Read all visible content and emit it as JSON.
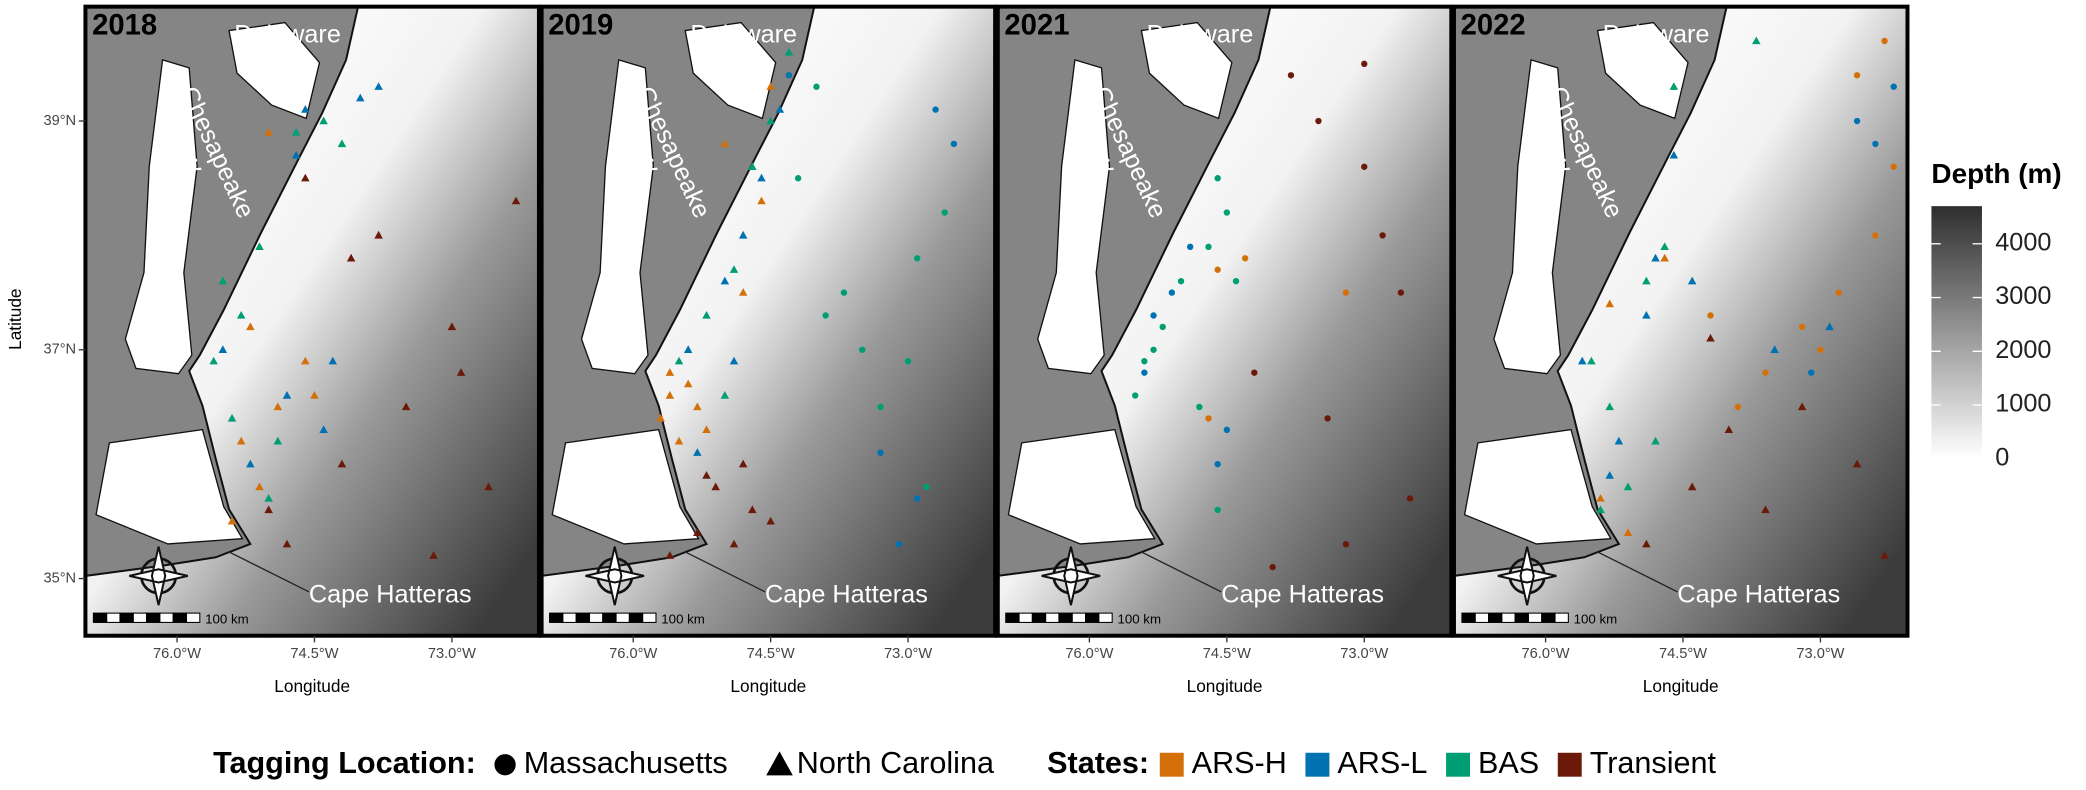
{
  "chart_data": [
    {
      "type": "scatter",
      "title": "2018",
      "x_label": "Longitude",
      "y_label": "Latitude",
      "xlim": [
        -77,
        -72.05
      ],
      "ylim": [
        34.5,
        40
      ],
      "xticks": [
        {
          "value": -76,
          "label": "76.0°W"
        },
        {
          "value": -74.5,
          "label": "74.5°W"
        },
        {
          "value": -73,
          "label": "73.0°W"
        }
      ],
      "yticks": [
        {
          "value": 35,
          "label": "35°N"
        },
        {
          "value": 37,
          "label": "37°N"
        },
        {
          "value": 39,
          "label": "39°N"
        }
      ],
      "series": [
        {
          "name": "ARS-H",
          "tagging": "North Carolina",
          "x": [
            -75.3,
            -75.1,
            -74.9,
            -75.4,
            -75.2,
            -74.6,
            -74.5,
            -75.0
          ],
          "y": [
            36.2,
            35.8,
            36.5,
            35.5,
            37.2,
            36.9,
            36.6,
            38.9
          ]
        },
        {
          "name": "ARS-L",
          "tagging": "North Carolina",
          "x": [
            -75.2,
            -74.8,
            -74.4,
            -74.3,
            -75.5,
            -74.7,
            -74.0,
            -73.8,
            -74.6
          ],
          "y": [
            36.0,
            36.6,
            36.3,
            36.9,
            37.0,
            38.7,
            39.2,
            39.3,
            39.1
          ]
        },
        {
          "name": "BAS",
          "tagging": "North Carolina",
          "x": [
            -75.6,
            -75.3,
            -75.4,
            -75.0,
            -74.9,
            -75.5,
            -74.7,
            -74.4,
            -74.2,
            -75.1
          ],
          "y": [
            36.9,
            37.3,
            36.4,
            35.7,
            36.2,
            37.6,
            38.9,
            39.0,
            38.8,
            37.9
          ]
        },
        {
          "name": "Transient",
          "tagging": "North Carolina",
          "x": [
            -74.2,
            -73.5,
            -73.0,
            -72.6,
            -74.6,
            -73.8,
            -72.9,
            -73.2,
            -74.8,
            -75.0,
            -74.1,
            -72.3
          ],
          "y": [
            36.0,
            36.5,
            37.2,
            35.8,
            38.5,
            38.0,
            36.8,
            35.2,
            35.3,
            35.6,
            37.8,
            38.3
          ]
        }
      ]
    },
    {
      "type": "scatter",
      "title": "2019",
      "x_label": "Longitude",
      "xlim": [
        -77,
        -72.05
      ],
      "ylim": [
        34.5,
        40
      ],
      "xticks": [
        {
          "value": -76,
          "label": "76.0°W"
        },
        {
          "value": -74.5,
          "label": "74.5°W"
        },
        {
          "value": -73,
          "label": "73.0°W"
        }
      ],
      "series": [
        {
          "name": "BAS",
          "tagging": "Massachusetts",
          "x": [
            -73.9,
            -73.5,
            -73.0,
            -72.6,
            -74.2,
            -73.3,
            -72.8,
            -73.7,
            -72.9,
            -74.0
          ],
          "y": [
            37.3,
            37.0,
            36.9,
            38.2,
            38.5,
            36.5,
            35.8,
            37.5,
            37.8,
            39.3
          ]
        },
        {
          "name": "ARS-L",
          "tagging": "Massachusetts",
          "x": [
            -72.7,
            -72.5,
            -73.1,
            -72.9,
            -73.3,
            -74.3
          ],
          "y": [
            39.1,
            38.8,
            35.3,
            35.7,
            36.1,
            39.4
          ]
        },
        {
          "name": "ARS-H",
          "tagging": "North Carolina",
          "x": [
            -75.7,
            -75.6,
            -75.5,
            -75.4,
            -75.3,
            -75.2,
            -75.6,
            -74.8,
            -74.6,
            -75.0,
            -74.5
          ],
          "y": [
            36.4,
            36.6,
            36.2,
            36.7,
            36.5,
            36.3,
            36.8,
            37.5,
            38.3,
            38.8,
            39.3
          ]
        },
        {
          "name": "ARS-L",
          "tagging": "North Carolina",
          "x": [
            -75.4,
            -75.0,
            -74.8,
            -74.6,
            -75.3,
            -74.9,
            -74.4
          ],
          "y": [
            37.0,
            37.6,
            38.0,
            38.5,
            36.1,
            36.9,
            39.1
          ]
        },
        {
          "name": "BAS",
          "tagging": "North Carolina",
          "x": [
            -75.5,
            -75.2,
            -74.9,
            -75.0,
            -74.7,
            -74.5,
            -74.3
          ],
          "y": [
            36.9,
            37.3,
            37.7,
            36.6,
            38.6,
            39.0,
            39.6
          ]
        },
        {
          "name": "Transient",
          "tagging": "North Carolina",
          "x": [
            -75.1,
            -74.7,
            -74.5,
            -74.8,
            -75.3,
            -74.9,
            -75.6,
            -75.2
          ],
          "y": [
            35.8,
            35.6,
            35.5,
            36.0,
            35.4,
            35.3,
            35.2,
            35.9
          ]
        }
      ]
    },
    {
      "type": "scatter",
      "title": "2021",
      "x_label": "Longitude",
      "xlim": [
        -77,
        -72.05
      ],
      "ylim": [
        34.5,
        40
      ],
      "xticks": [
        {
          "value": -76,
          "label": "76.0°W"
        },
        {
          "value": -74.5,
          "label": "74.5°W"
        },
        {
          "value": -73,
          "label": "73.0°W"
        }
      ],
      "series": [
        {
          "name": "BAS",
          "tagging": "Massachusetts",
          "x": [
            -74.6,
            -74.5,
            -74.7,
            -75.0,
            -75.2,
            -75.4,
            -75.5,
            -74.8,
            -74.6,
            -75.3,
            -74.4
          ],
          "y": [
            38.5,
            38.2,
            37.9,
            37.6,
            37.2,
            36.9,
            36.6,
            36.5,
            35.6,
            37.0,
            37.6
          ]
        },
        {
          "name": "ARS-L",
          "tagging": "Massachusetts",
          "x": [
            -74.9,
            -75.1,
            -75.3,
            -74.5,
            -75.4,
            -74.6
          ],
          "y": [
            37.9,
            37.5,
            37.3,
            36.3,
            36.8,
            36.0
          ]
        },
        {
          "name": "ARS-H",
          "tagging": "Massachusetts",
          "x": [
            -74.6,
            -74.3,
            -73.2,
            -74.7
          ],
          "y": [
            37.7,
            37.8,
            37.5,
            36.4
          ]
        },
        {
          "name": "Transient",
          "tagging": "Massachusetts",
          "x": [
            -73.8,
            -73.5,
            -73.0,
            -72.6,
            -74.2,
            -73.4,
            -72.5,
            -73.2,
            -74.0,
            -73.0,
            -72.8
          ],
          "y": [
            39.4,
            39.0,
            38.6,
            37.5,
            36.8,
            36.4,
            35.7,
            35.3,
            35.1,
            39.5,
            38.0
          ]
        }
      ]
    },
    {
      "type": "scatter",
      "title": "2022",
      "x_label": "Longitude",
      "xlim": [
        -77,
        -72.05
      ],
      "ylim": [
        34.5,
        40
      ],
      "xticks": [
        {
          "value": -76,
          "label": "76.0°W"
        },
        {
          "value": -74.5,
          "label": "74.5°W"
        },
        {
          "value": -73,
          "label": "73.0°W"
        }
      ],
      "series": [
        {
          "name": "BAS",
          "tagging": "North Carolina",
          "x": [
            -75.3,
            -75.1,
            -75.5,
            -74.9,
            -74.7,
            -75.4,
            -74.8,
            -74.6,
            -73.7
          ],
          "y": [
            36.5,
            35.8,
            36.9,
            37.6,
            37.9,
            35.6,
            36.2,
            39.3,
            39.7
          ]
        },
        {
          "name": "ARS-L",
          "tagging": "North Carolina",
          "x": [
            -75.6,
            -75.2,
            -74.9,
            -74.6,
            -75.3,
            -74.8,
            -74.4,
            -73.5,
            -72.9
          ],
          "y": [
            36.9,
            36.2,
            37.3,
            38.7,
            35.9,
            37.8,
            37.6,
            37.0,
            37.2
          ]
        },
        {
          "name": "ARS-H",
          "tagging": "North Carolina",
          "x": [
            -75.4,
            -75.1,
            -75.3,
            -74.7
          ],
          "y": [
            35.7,
            35.4,
            37.4,
            37.8
          ]
        },
        {
          "name": "Transient",
          "tagging": "North Carolina",
          "x": [
            -74.4,
            -74.0,
            -73.6,
            -73.2,
            -72.6,
            -74.9,
            -74.2,
            -72.3
          ],
          "y": [
            35.8,
            36.3,
            35.6,
            36.5,
            36.0,
            35.3,
            37.1,
            35.2
          ]
        },
        {
          "name": "ARS-H",
          "tagging": "Massachusetts",
          "x": [
            -73.6,
            -73.2,
            -72.8,
            -72.4,
            -72.2,
            -73.9,
            -73.0,
            -72.6,
            -72.3,
            -74.2
          ],
          "y": [
            36.8,
            37.2,
            37.5,
            38.0,
            38.6,
            36.5,
            37.0,
            39.4,
            39.7,
            37.3
          ]
        },
        {
          "name": "ARS-L",
          "tagging": "Massachusetts",
          "x": [
            -72.6,
            -72.4,
            -72.2,
            -73.1
          ],
          "y": [
            39.0,
            38.8,
            39.3,
            36.8
          ]
        }
      ]
    }
  ],
  "map_labels": {
    "delaware_bay": [
      "Delaware",
      "Bay"
    ],
    "chesapeake_bay": [
      "Chesapeake",
      "Bay"
    ],
    "cape": "Cape Hatteras",
    "scale": "100 km"
  },
  "colorbar": {
    "title": "Depth (m)",
    "lim": [
      0,
      4700
    ],
    "ticks": [
      0,
      1000,
      2000,
      3000,
      4000
    ]
  },
  "legend": {
    "shape_title": "Tagging Location:",
    "shapes": [
      {
        "label": "Massachusetts",
        "marker": "circle"
      },
      {
        "label": "North Carolina",
        "marker": "triangle"
      }
    ],
    "color_title": "States:",
    "colors": [
      {
        "label": "ARS-H",
        "color": "#d4700a"
      },
      {
        "label": "ARS-L",
        "color": "#0072b2"
      },
      {
        "label": "BAS",
        "color": "#009e73"
      },
      {
        "label": "Transient",
        "color": "#6b1a0a"
      }
    ]
  }
}
